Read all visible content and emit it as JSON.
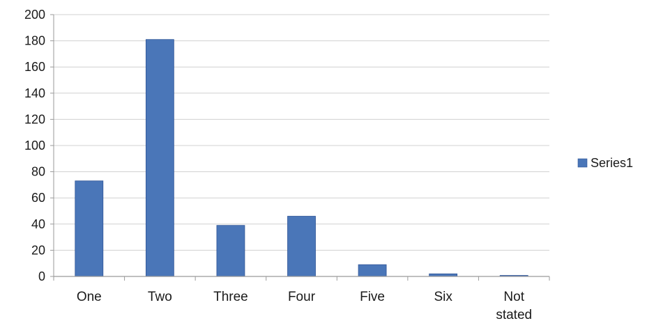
{
  "chart_data": {
    "type": "bar",
    "categories": [
      "One",
      "Two",
      "Three",
      "Four",
      "Five",
      "Six",
      "Not stated"
    ],
    "category_lines": [
      [
        "One"
      ],
      [
        "Two"
      ],
      [
        "Three"
      ],
      [
        "Four"
      ],
      [
        "Five"
      ],
      [
        "Six"
      ],
      [
        "Not",
        "stated"
      ]
    ],
    "series": [
      {
        "name": "Series1",
        "values": [
          73,
          181,
          39,
          46,
          9,
          2,
          0
        ]
      }
    ],
    "ylim": [
      0,
      200
    ],
    "yticks": [
      0,
      20,
      40,
      60,
      80,
      100,
      120,
      140,
      160,
      180,
      200
    ],
    "grid": true,
    "legend": "right",
    "colors": {
      "bar": "#4a76b8",
      "bar_edge": "#2f5597",
      "grid": "#d0d0d0",
      "axis": "#9a9a9a"
    }
  }
}
